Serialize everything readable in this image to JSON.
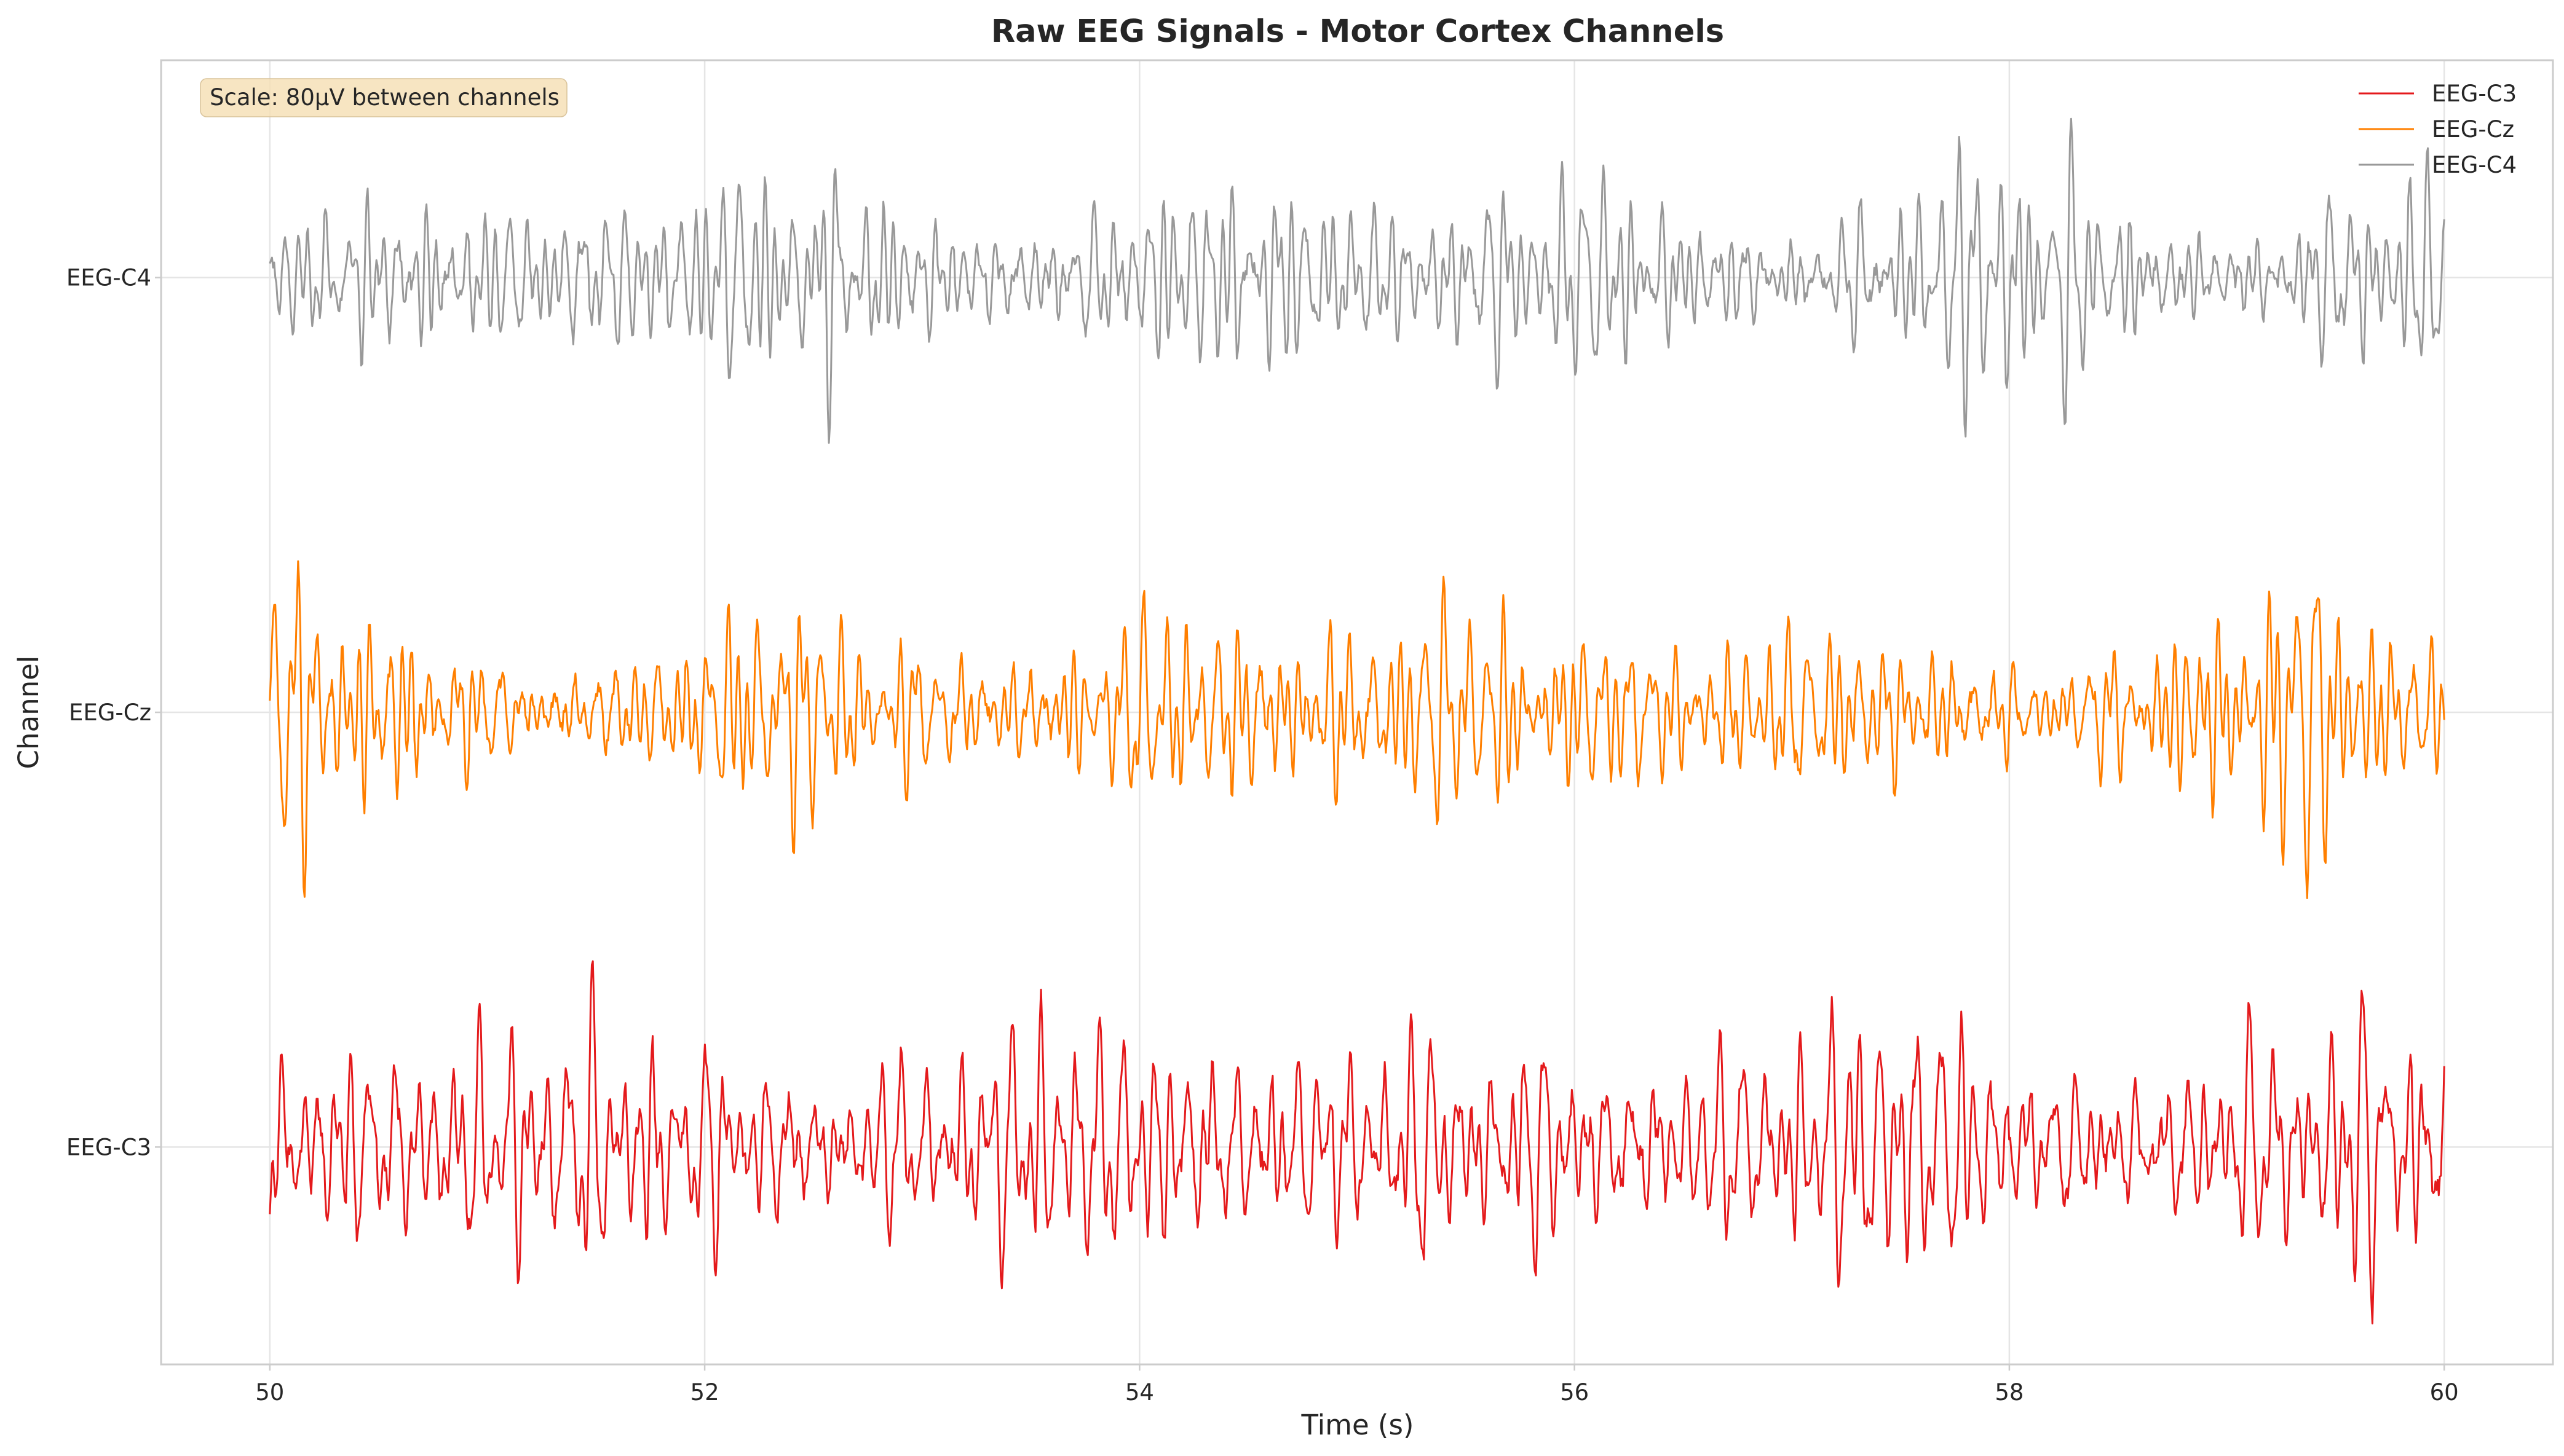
{
  "chart_data": {
    "type": "line",
    "title": "Raw EEG Signals - Motor Cortex Channels",
    "xlabel": "Time (s)",
    "ylabel": "Channel",
    "xlim": [
      49.5,
      60.5
    ],
    "x_ticks": [
      50,
      52,
      54,
      56,
      58,
      60
    ],
    "x_tick_labels": [
      "50",
      "52",
      "54",
      "56",
      "58",
      "60"
    ],
    "ylim": [
      -40,
      200
    ],
    "y_ticks": [
      0,
      80,
      160
    ],
    "y_tick_labels": [
      "EEG-C3",
      "EEG-Cz",
      "EEG-C4"
    ],
    "channel_spacing_uV": 80,
    "grid": true,
    "legend_position": "top-right",
    "annotation": "Scale: 80μV between channels",
    "annotation_bg": "#f5deb3",
    "series": [
      {
        "name": "EEG-C3",
        "color": "#e41a1c",
        "offset": 0,
        "amplitude_uV": 18,
        "seed": 11
      },
      {
        "name": "EEG-Cz",
        "color": "#ff7f00",
        "offset": 80,
        "amplitude_uV": 18,
        "seed": 23
      },
      {
        "name": "EEG-C4",
        "color": "#999999",
        "offset": 160,
        "amplitude_uV": 16,
        "seed": 37
      }
    ],
    "x_start": 50,
    "x_end": 60
  }
}
